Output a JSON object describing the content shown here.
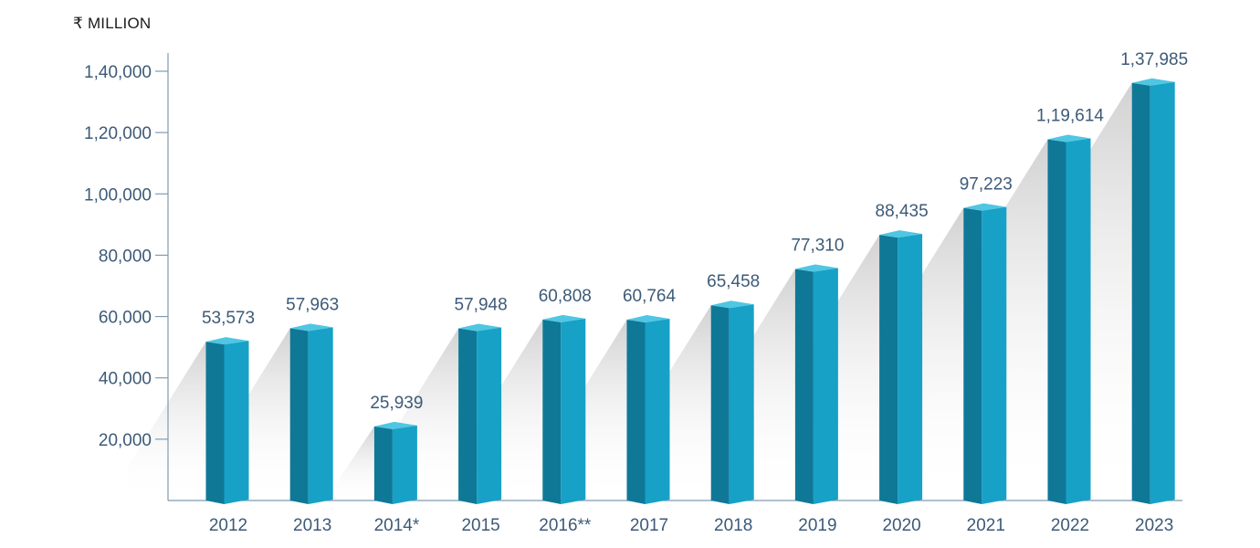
{
  "chart_data": {
    "type": "bar",
    "unit_label": "₹ MILLION",
    "categories": [
      "2012",
      "2013",
      "2014*",
      "2015",
      "2016**",
      "2017",
      "2018",
      "2019",
      "2020",
      "2021",
      "2022",
      "2023"
    ],
    "values": [
      53573,
      57963,
      25939,
      57948,
      60808,
      60764,
      65458,
      77310,
      88435,
      97223,
      119614,
      137985
    ],
    "value_labels": [
      "53,573",
      "57,963",
      "25,939",
      "57,948",
      "60,808",
      "60,764",
      "65,458",
      "77,310",
      "88,435",
      "97,223",
      "1,19,614",
      "1,37,985"
    ],
    "yticks": [
      20000,
      40000,
      60000,
      80000,
      100000,
      120000,
      140000
    ],
    "ytick_labels": [
      "20,000",
      "40,000",
      "60,000",
      "80,000",
      "1,00,000",
      "1,20,000",
      "1,40,000"
    ],
    "ylim": [
      0,
      140000
    ],
    "colors": {
      "bar_front": "#17a1c7",
      "bar_side": "#0f7896",
      "bar_top": "#4fc6e2",
      "axis": "#7f9bb4",
      "text": "#3d5a78"
    }
  }
}
